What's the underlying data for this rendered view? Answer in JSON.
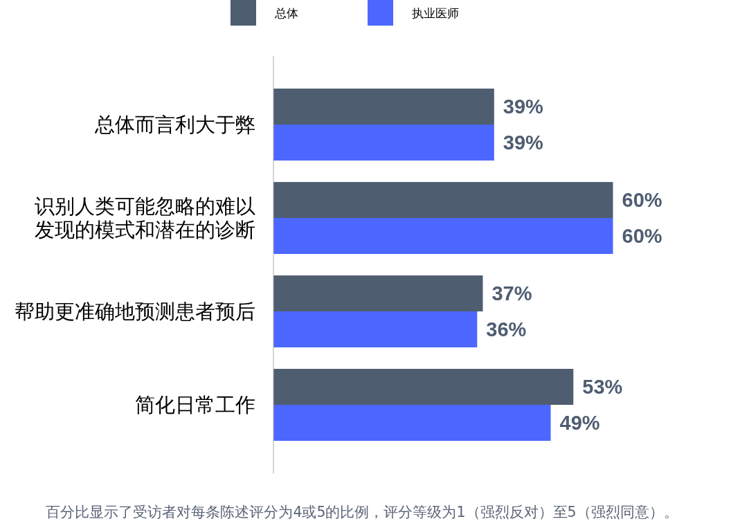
{
  "chart_data": {
    "type": "bar",
    "orientation": "horizontal",
    "categories": [
      "总体而言利大于弊",
      "识别人类可能忽略的难以发现的模式和潜在的诊断",
      "帮助更准确地预测患者预后",
      "简化日常工作"
    ],
    "series": [
      {
        "name": "总体",
        "color": "#4f5d70",
        "values": [
          39,
          60,
          37,
          53
        ],
        "value_labels": [
          "39%",
          "60%",
          "37%",
          "53%"
        ]
      },
      {
        "name": "执业医师",
        "color": "#4b67ff",
        "values": [
          39,
          60,
          36,
          49
        ],
        "value_labels": [
          "39%",
          "60%",
          "36%",
          "49%"
        ]
      }
    ],
    "legend": "top",
    "tick_labels": "y",
    "annotations": [
      "百分比显示了受访者对每条陈述评分为4或5的比例，评分等级为1（强烈反对）至5（强烈同意）。"
    ]
  }
}
